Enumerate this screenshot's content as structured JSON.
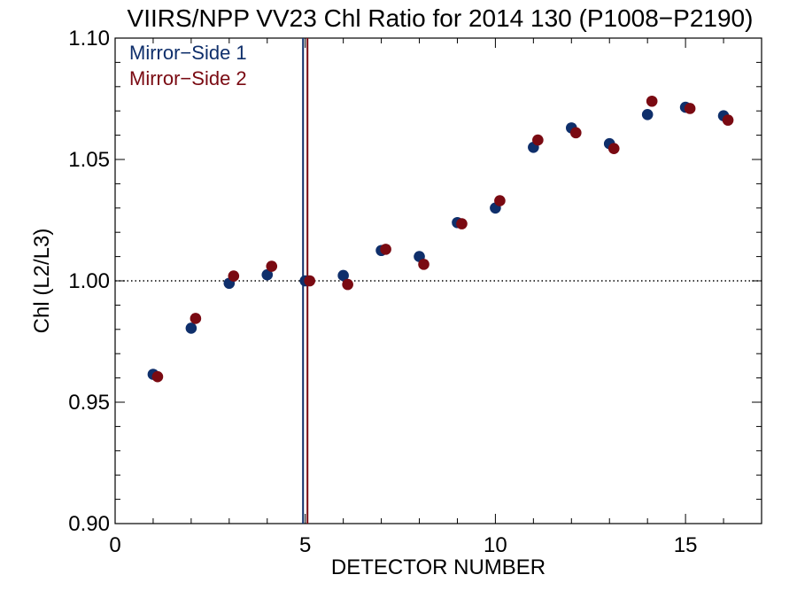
{
  "chart_data": {
    "type": "scatter",
    "title": "VIIRS/NPP VV23 Chl Ratio for 2014 130 (P1008−P2190)",
    "xlabel": "DETECTOR NUMBER",
    "ylabel": "Chl (L2/L3)",
    "xlim": [
      0,
      17
    ],
    "ylim": [
      0.9,
      1.1
    ],
    "xticks": [
      0,
      5,
      10,
      15
    ],
    "xtick_labels": [
      "0",
      "5",
      "10",
      "15"
    ],
    "yticks": [
      0.9,
      0.95,
      1.0,
      1.05,
      1.1
    ],
    "ytick_labels": [
      "0.90",
      "0.95",
      "1.00",
      "1.05",
      "1.10"
    ],
    "reference_line": {
      "y": 1.0,
      "style": "dotted"
    },
    "vertical_lines": [
      {
        "x": 5,
        "color": "#0f2f6b",
        "series": "Mirror−Side 1"
      },
      {
        "x": 5,
        "color": "#7a0a12",
        "series": "Mirror−Side 2"
      }
    ],
    "legend_position": "top-left",
    "series": [
      {
        "name": "Mirror−Side 1",
        "color": "#0f2f6b",
        "points": [
          [
            1,
            0.9615
          ],
          [
            2,
            0.9805
          ],
          [
            3,
            0.999
          ],
          [
            4,
            1.0025
          ],
          [
            5,
            1.0
          ],
          [
            6,
            1.0022
          ],
          [
            7,
            1.0125
          ],
          [
            8,
            1.01
          ],
          [
            9,
            1.024
          ],
          [
            10,
            1.03
          ],
          [
            11,
            1.055
          ],
          [
            12,
            1.063
          ],
          [
            13,
            1.0565
          ],
          [
            14,
            1.0685
          ],
          [
            15,
            1.0715
          ],
          [
            16,
            1.068
          ]
        ]
      },
      {
        "name": "Mirror−Side 2",
        "color": "#7a0a12",
        "points": [
          [
            1,
            0.9605
          ],
          [
            2,
            0.9845
          ],
          [
            3,
            1.002
          ],
          [
            4,
            1.006
          ],
          [
            5,
            1.0
          ],
          [
            6,
            0.9985
          ],
          [
            7,
            1.013
          ],
          [
            8,
            1.0068
          ],
          [
            9,
            1.0235
          ],
          [
            10,
            1.033
          ],
          [
            11,
            1.058
          ],
          [
            12,
            1.061
          ],
          [
            13,
            1.0545
          ],
          [
            14,
            1.074
          ],
          [
            15,
            1.071
          ],
          [
            16,
            1.0662
          ]
        ]
      }
    ]
  }
}
